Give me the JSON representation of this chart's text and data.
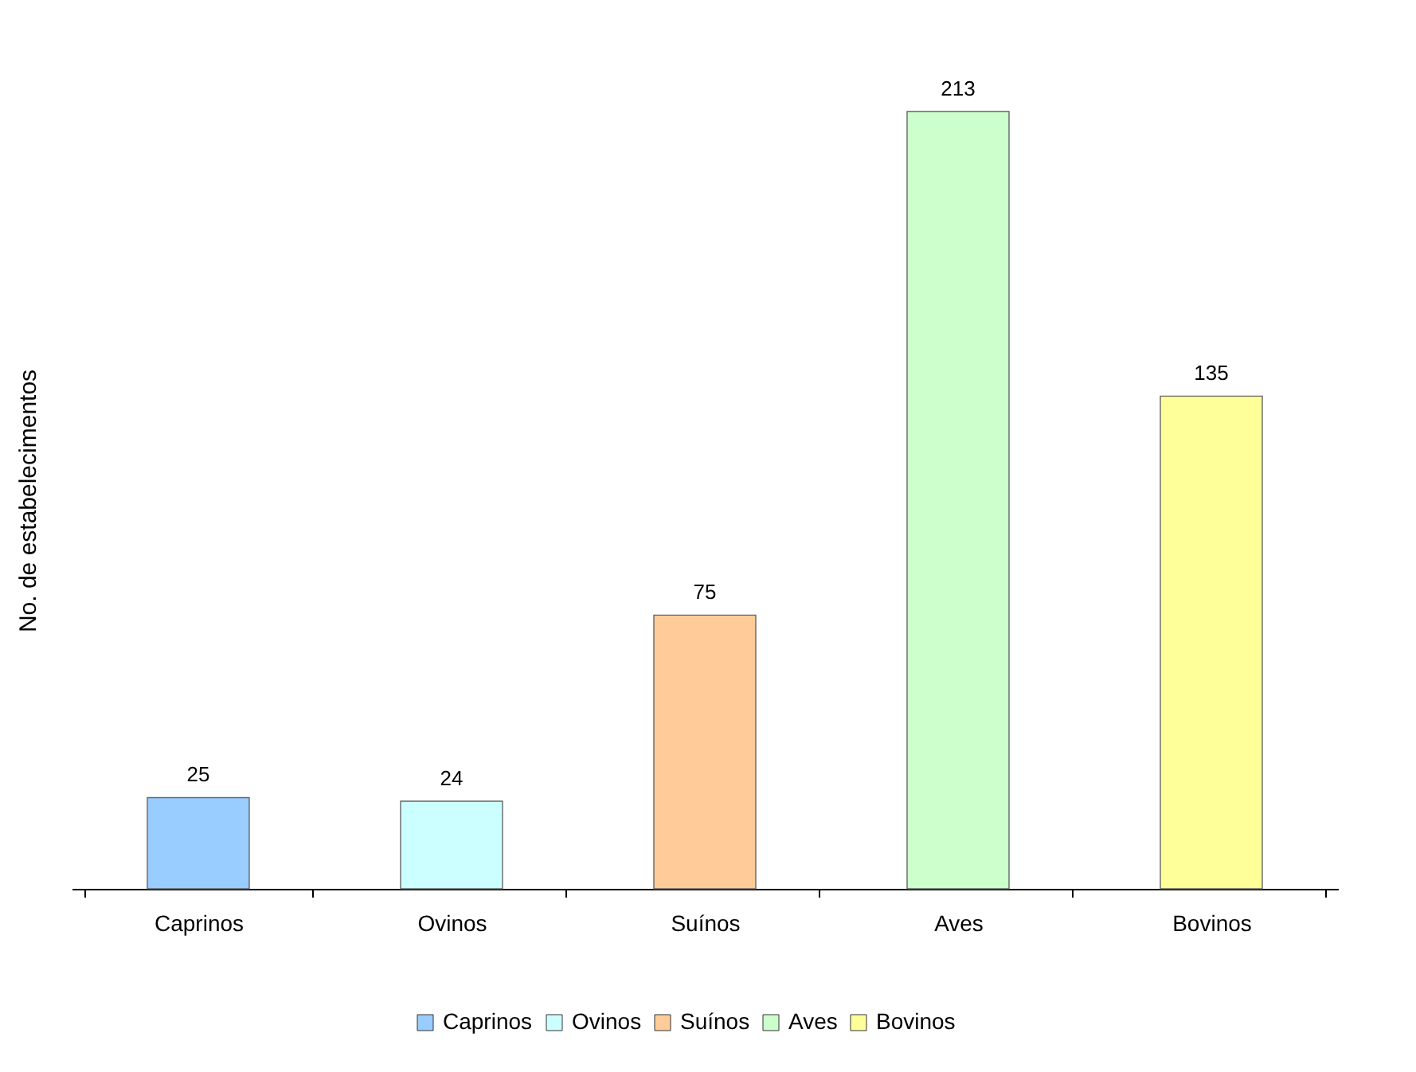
{
  "chart_data": {
    "type": "bar",
    "ylabel": "No. de estabelecimentos",
    "categories": [
      "Caprinos",
      "Ovinos",
      "Suínos",
      "Aves",
      "Bovinos"
    ],
    "series": [
      {
        "name": "Caprinos",
        "color": "#99ccff",
        "values": [
          25,
          null,
          null,
          null,
          null
        ]
      },
      {
        "name": "Ovinos",
        "color": "#ccffff",
        "values": [
          null,
          24,
          null,
          null,
          null
        ]
      },
      {
        "name": "Suínos",
        "color": "#ffcc99",
        "values": [
          null,
          null,
          75,
          null,
          null
        ]
      },
      {
        "name": "Aves",
        "color": "#ccffcc",
        "values": [
          null,
          null,
          null,
          213,
          null
        ]
      },
      {
        "name": "Bovinos",
        "color": "#ffff99",
        "values": [
          null,
          null,
          null,
          null,
          135
        ]
      }
    ],
    "data_labels": true,
    "grid": false,
    "legend": "bottom"
  }
}
